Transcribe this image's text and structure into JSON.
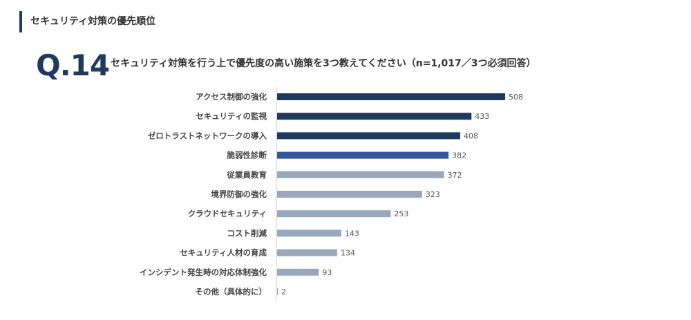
{
  "header": {
    "title": "セキュリティ対策の優先順位"
  },
  "question": {
    "number": "Q.14",
    "text": "セキュリティ対策を行う上で優先度の高い施策を3つ教えてください（n=1,017／3つ必須回答）"
  },
  "colors": {
    "dark": "#1f3a5f",
    "mid": "#34589c",
    "light": "#9aa8bd",
    "axis": "#cccccc"
  },
  "chart_data": {
    "type": "bar",
    "orientation": "horizontal",
    "categories": [
      "アクセス制御の強化",
      "セキュリティの監視",
      "ゼロトラストネットワークの導入",
      "脆弱性診断",
      "従業員教育",
      "境界防御の強化",
      "クラウドセキュリティ",
      "コスト削減",
      "セキュリティ人材の育成",
      "インシデント発生時の対応体制強化",
      "その他（具体的に）"
    ],
    "values": [
      508,
      433,
      408,
      382,
      372,
      323,
      253,
      143,
      134,
      93,
      2
    ],
    "bar_colors": [
      "#1f3a5f",
      "#1f3a5f",
      "#1f3a5f",
      "#34589c",
      "#9aa8bd",
      "#9aa8bd",
      "#9aa8bd",
      "#9aa8bd",
      "#9aa8bd",
      "#9aa8bd",
      "#9aa8bd"
    ],
    "xlim": [
      0,
      508
    ],
    "grid": false,
    "legend": "none"
  }
}
